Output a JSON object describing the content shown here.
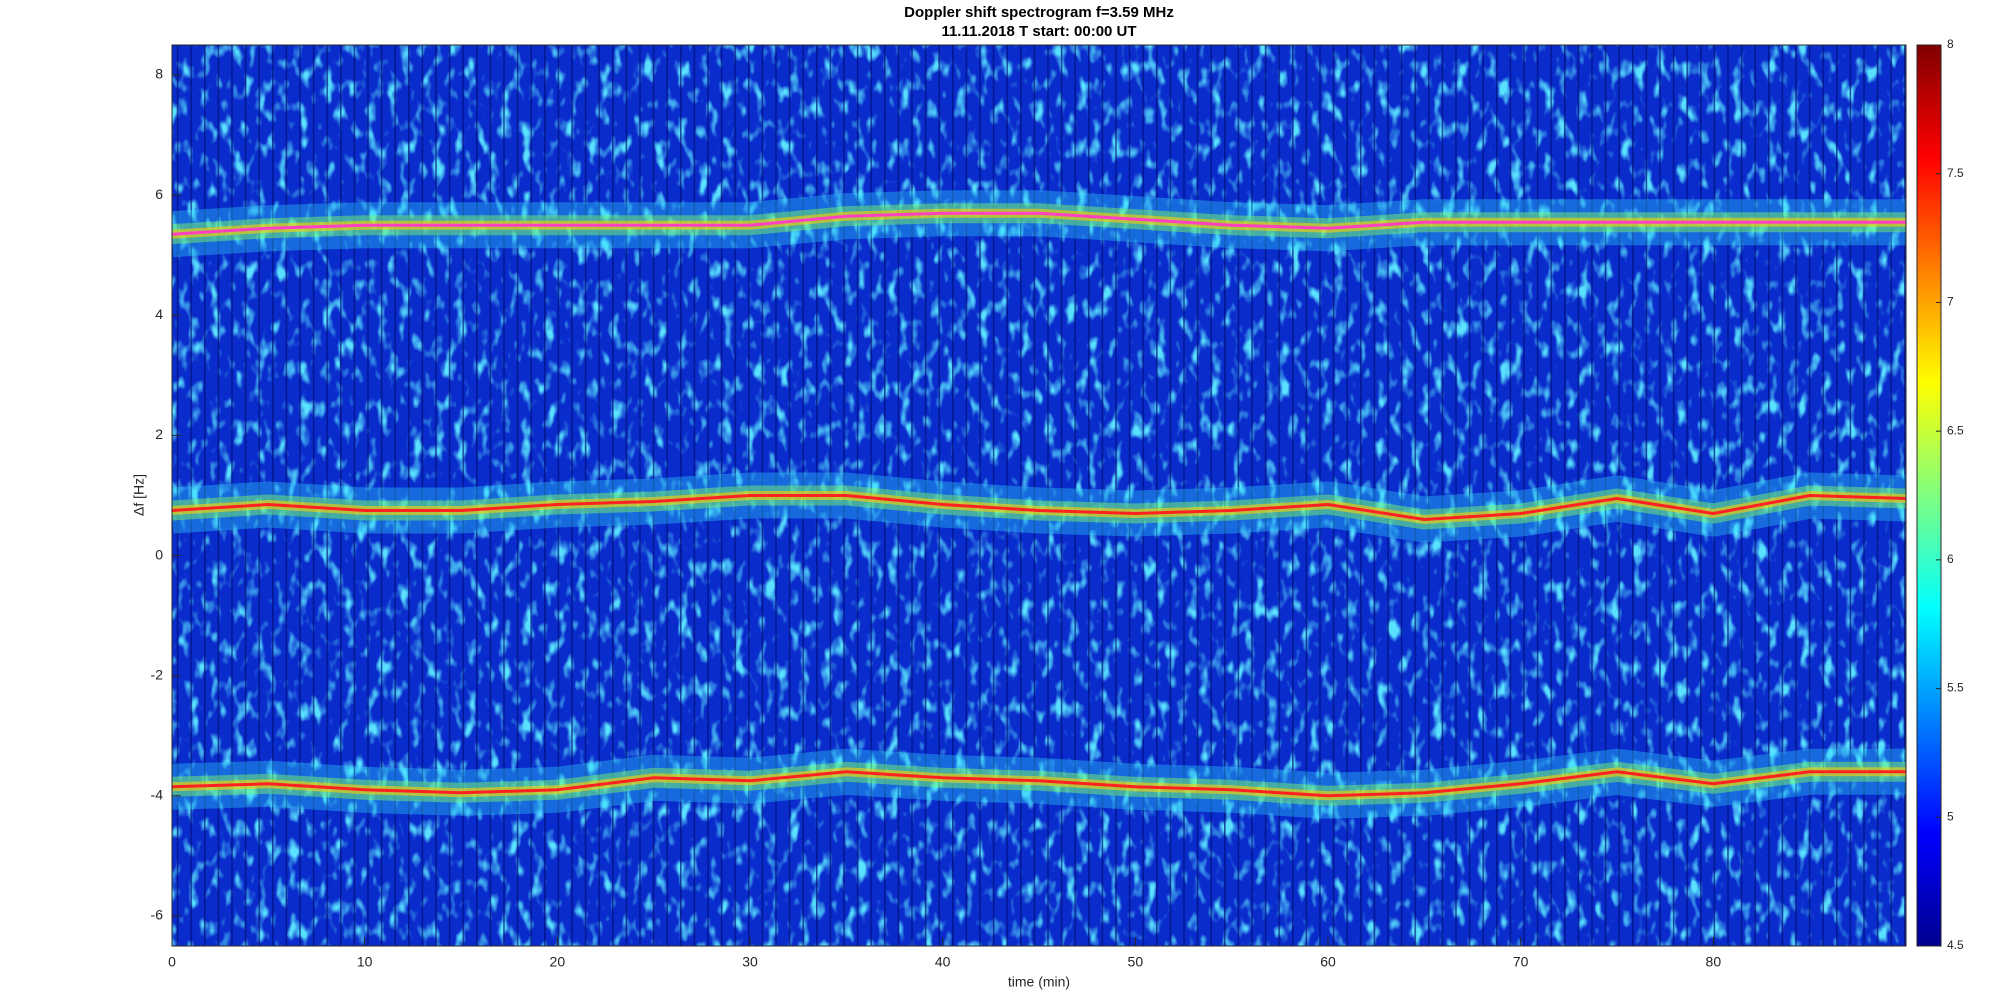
{
  "chart_data": {
    "type": "spectrogram",
    "title": "Doppler shift spectrogram f=3.59 MHz",
    "subtitle": "11.11.2018   T start: 00:00 UT",
    "xlabel": "time (min)",
    "ylabel": "Δf [Hz]",
    "xlim": [
      0,
      90
    ],
    "ylim": [
      -6.5,
      8.5
    ],
    "xticks": [
      0,
      10,
      20,
      30,
      40,
      50,
      60,
      70,
      80
    ],
    "yticks": [
      -6,
      -4,
      -2,
      0,
      2,
      4,
      6,
      8
    ],
    "colormap": "jet",
    "clim": [
      4.5,
      8
    ],
    "cticks": [
      4.5,
      5,
      5.5,
      6,
      6.5,
      7,
      7.5,
      8
    ],
    "x": [
      0,
      5,
      10,
      15,
      20,
      25,
      30,
      35,
      40,
      45,
      50,
      55,
      60,
      65,
      70,
      75,
      80,
      85,
      90
    ],
    "series": [
      {
        "color": "#ff40c0",
        "values": [
          5.35,
          5.45,
          5.5,
          5.5,
          5.5,
          5.5,
          5.5,
          5.65,
          5.7,
          5.7,
          5.6,
          5.5,
          5.45,
          5.55,
          5.55,
          5.55,
          5.55,
          5.55,
          5.55
        ]
      },
      {
        "color": "#ff2020",
        "values": [
          0.75,
          0.85,
          0.75,
          0.75,
          0.85,
          0.9,
          1.0,
          1.0,
          0.85,
          0.75,
          0.7,
          0.75,
          0.85,
          0.6,
          0.7,
          0.95,
          0.7,
          1.0,
          0.95
        ]
      },
      {
        "color": "#ff2020",
        "values": [
          -3.85,
          -3.8,
          -3.9,
          -3.95,
          -3.9,
          -3.7,
          -3.75,
          -3.6,
          -3.7,
          -3.75,
          -3.85,
          -3.9,
          -4.0,
          -3.95,
          -3.8,
          -3.6,
          -3.8,
          -3.6,
          -3.6
        ]
      }
    ]
  }
}
